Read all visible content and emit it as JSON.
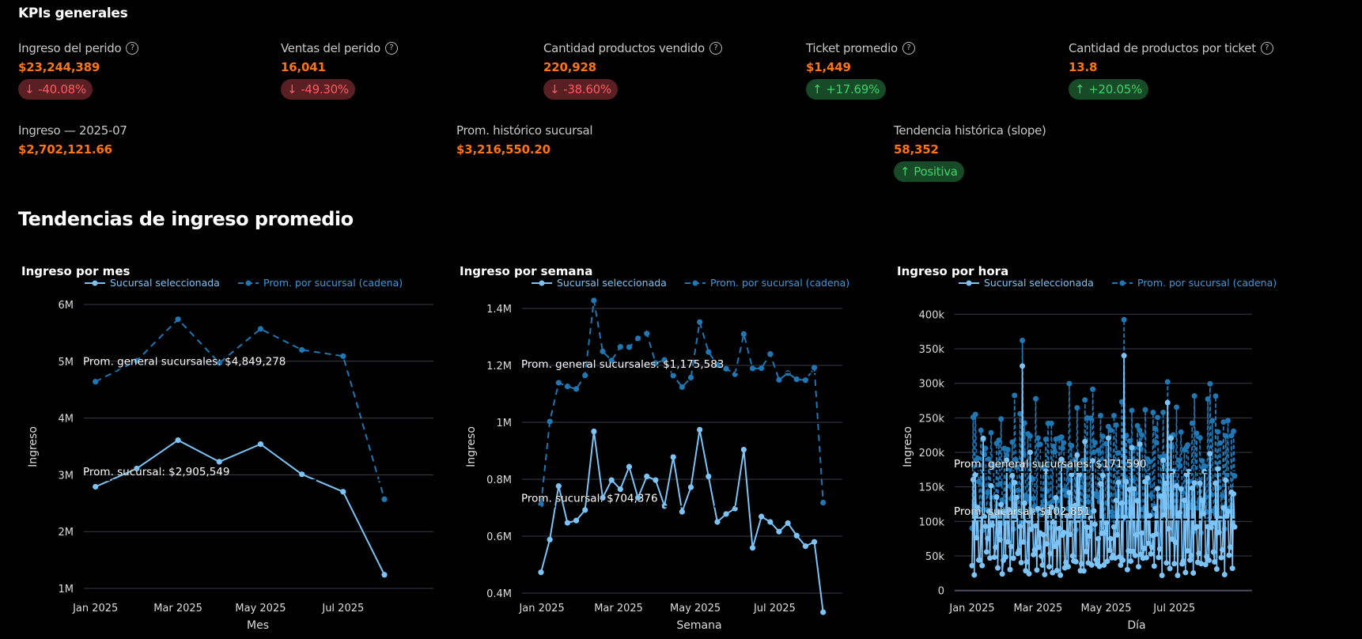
{
  "kpis_section": {
    "title": "KPIs generales",
    "row1": [
      {
        "label": "Ingreso del perido",
        "value": "$23,244,389",
        "delta": "-40.08%",
        "direction": "down",
        "help_icon": "help-circle-icon"
      },
      {
        "label": "Ventas del perido",
        "value": "16,041",
        "delta": "-49.30%",
        "direction": "down",
        "help_icon": "help-circle-icon"
      },
      {
        "label": "Cantidad productos vendido",
        "value": "220,928",
        "delta": "-38.60%",
        "direction": "down",
        "help_icon": "help-circle-icon"
      },
      {
        "label": "Ticket promedio",
        "value": "$1,449",
        "delta": "+17.69%",
        "direction": "up",
        "help_icon": "help-circle-icon"
      },
      {
        "label": "Cantidad de productos por ticket",
        "value": "13.8",
        "delta": "+20.05%",
        "direction": "up",
        "help_icon": "help-circle-icon"
      }
    ],
    "row2": [
      {
        "label": "Ingreso — 2025-07",
        "value": "$2,702,121.66"
      },
      {
        "label": "Prom. histórico sucursal",
        "value": "$3,216,550.20"
      },
      {
        "label": "Tendencia histórica (slope)",
        "value": "58,352",
        "badge": "Positiva",
        "direction": "up"
      }
    ],
    "arrows": {
      "up": "↑",
      "down": "↓"
    },
    "help_glyph": "?"
  },
  "trends_section": {
    "title": "Tendencias de ingreso promedio"
  },
  "colors": {
    "selected": "#7cc4f8",
    "chain": "#1f77b4",
    "accent_value": "#ff7413",
    "negative_text": "#ff5a5f",
    "negative_bg": "#5a1f23",
    "positive_text": "#3fd26a",
    "positive_bg": "#174a26",
    "grid": "#3a3d4a"
  },
  "chart_data": [
    {
      "type": "line",
      "title": "Ingreso por mes",
      "xlabel": "Mes",
      "ylabel": "Ingreso",
      "x": [
        "2025-01",
        "2025-02",
        "2025-03",
        "2025-04",
        "2025-05",
        "2025-06",
        "2025-07",
        "2025-08"
      ],
      "xticks": [
        "Jan 2025",
        "Mar 2025",
        "May 2025",
        "Jul 2025"
      ],
      "xtick_index": [
        0,
        2,
        4,
        6
      ],
      "yticks": [
        1000000,
        2000000,
        3000000,
        4000000,
        5000000,
        6000000
      ],
      "ytick_labels": [
        "1M",
        "2M",
        "3M",
        "4M",
        "5M",
        "6M"
      ],
      "ylim": [
        1000000,
        6000000
      ],
      "grid": true,
      "legend": "top-left",
      "series": [
        {
          "name": "Sucursal seleccionada",
          "style": "solid",
          "values": [
            2790000,
            3110000,
            3610000,
            3230000,
            3540000,
            3010000,
            2702122,
            1240000
          ]
        },
        {
          "name": "Prom. por sucursal (cadena)",
          "style": "dashed",
          "values": [
            4640000,
            5010000,
            5740000,
            4970000,
            5570000,
            5200000,
            5090000,
            2570000
          ]
        }
      ],
      "annotations": [
        {
          "text": "Prom. general sucursales: $4,849,278",
          "y": 4849278
        },
        {
          "text": "Prom. sucursal: $2,905,549",
          "y": 2905549
        }
      ]
    },
    {
      "type": "line",
      "title": "Ingreso por semana",
      "xlabel": "Semana",
      "ylabel": "Ingreso",
      "xticks": [
        "Jan 2025",
        "Mar 2025",
        "May 2025",
        "Jul 2025"
      ],
      "xtick_index": [
        0.1,
        8.8,
        17.5,
        26.5
      ],
      "yticks": [
        400000,
        600000,
        800000,
        1000000,
        1200000,
        1400000
      ],
      "ytick_labels": [
        "0.4M",
        "0.6M",
        "0.8M",
        "1M",
        "1.2M",
        "1.4M"
      ],
      "ylim": [
        260000,
        1480000
      ],
      "grid": true,
      "legend": "top-left",
      "series": [
        {
          "name": "Sucursal seleccionada",
          "style": "solid",
          "values": [
            473000,
            588000,
            776000,
            647000,
            655000,
            692000,
            968000,
            735000,
            797000,
            765000,
            844000,
            735000,
            810000,
            797000,
            706000,
            878000,
            686000,
            772000,
            974000,
            810000,
            650000,
            678000,
            697000,
            904000,
            559000,
            669000,
            650000,
            616000,
            646000,
            602000,
            565000,
            580000,
            333000
          ]
        },
        {
          "name": "Prom. por sucursal (cadena)",
          "style": "dashed",
          "values": [
            712000,
            1003000,
            1139000,
            1126000,
            1117000,
            1165000,
            1428000,
            1249000,
            1217000,
            1265000,
            1264000,
            1295000,
            1312000,
            1208000,
            1219000,
            1164000,
            1124000,
            1157000,
            1352000,
            1247000,
            1202000,
            1188000,
            1169000,
            1310000,
            1189000,
            1190000,
            1240000,
            1149000,
            1173000,
            1151000,
            1148000,
            1192000,
            718000
          ]
        }
      ],
      "annotations": [
        {
          "text": "Prom. general sucursales: $1,175,583",
          "y": 1175583
        },
        {
          "text": "Prom. sucursal: $704,376",
          "y": 704376
        }
      ]
    },
    {
      "type": "line",
      "title": "Ingreso por hora",
      "xlabel": "Día",
      "ylabel": "Ingreso",
      "xticks": [
        "Jan 2025",
        "Mar 2025",
        "May 2025",
        "Jul 2025"
      ],
      "xtick_index": [
        0,
        59,
        120,
        181
      ],
      "yticks": [
        0,
        50000,
        100000,
        150000,
        200000,
        250000,
        300000,
        350000,
        400000
      ],
      "ytick_labels": [
        "0",
        "50k",
        "100k",
        "150k",
        "200k",
        "250k",
        "300k",
        "350k",
        "400k"
      ],
      "ylim": [
        0,
        400000
      ],
      "grid": true,
      "legend": "top-left",
      "n_points": 236,
      "weekly_pattern_selected": [
        60000,
        120000,
        35000,
        160000,
        85000,
        125000,
        40000
      ],
      "weekly_pattern_chain": [
        120000,
        235000,
        110000,
        250000,
        180000,
        210000,
        135000
      ],
      "peaks": [
        {
          "index": 45,
          "selected": 325000,
          "chain": 362000
        },
        {
          "index": 136,
          "selected": 340000,
          "chain": 392000
        },
        {
          "index": 175,
          "selected": 272000,
          "chain": 302000
        }
      ],
      "series": [
        {
          "name": "Sucursal seleccionada",
          "style": "solid"
        },
        {
          "name": "Prom. por sucursal (cadena)",
          "style": "dashed"
        }
      ],
      "annotations": [
        {
          "text": "Prom. general sucursales: $171,590",
          "y": 171590
        },
        {
          "text": "Prom. sucursal: $102,851",
          "y": 102851
        }
      ]
    }
  ]
}
